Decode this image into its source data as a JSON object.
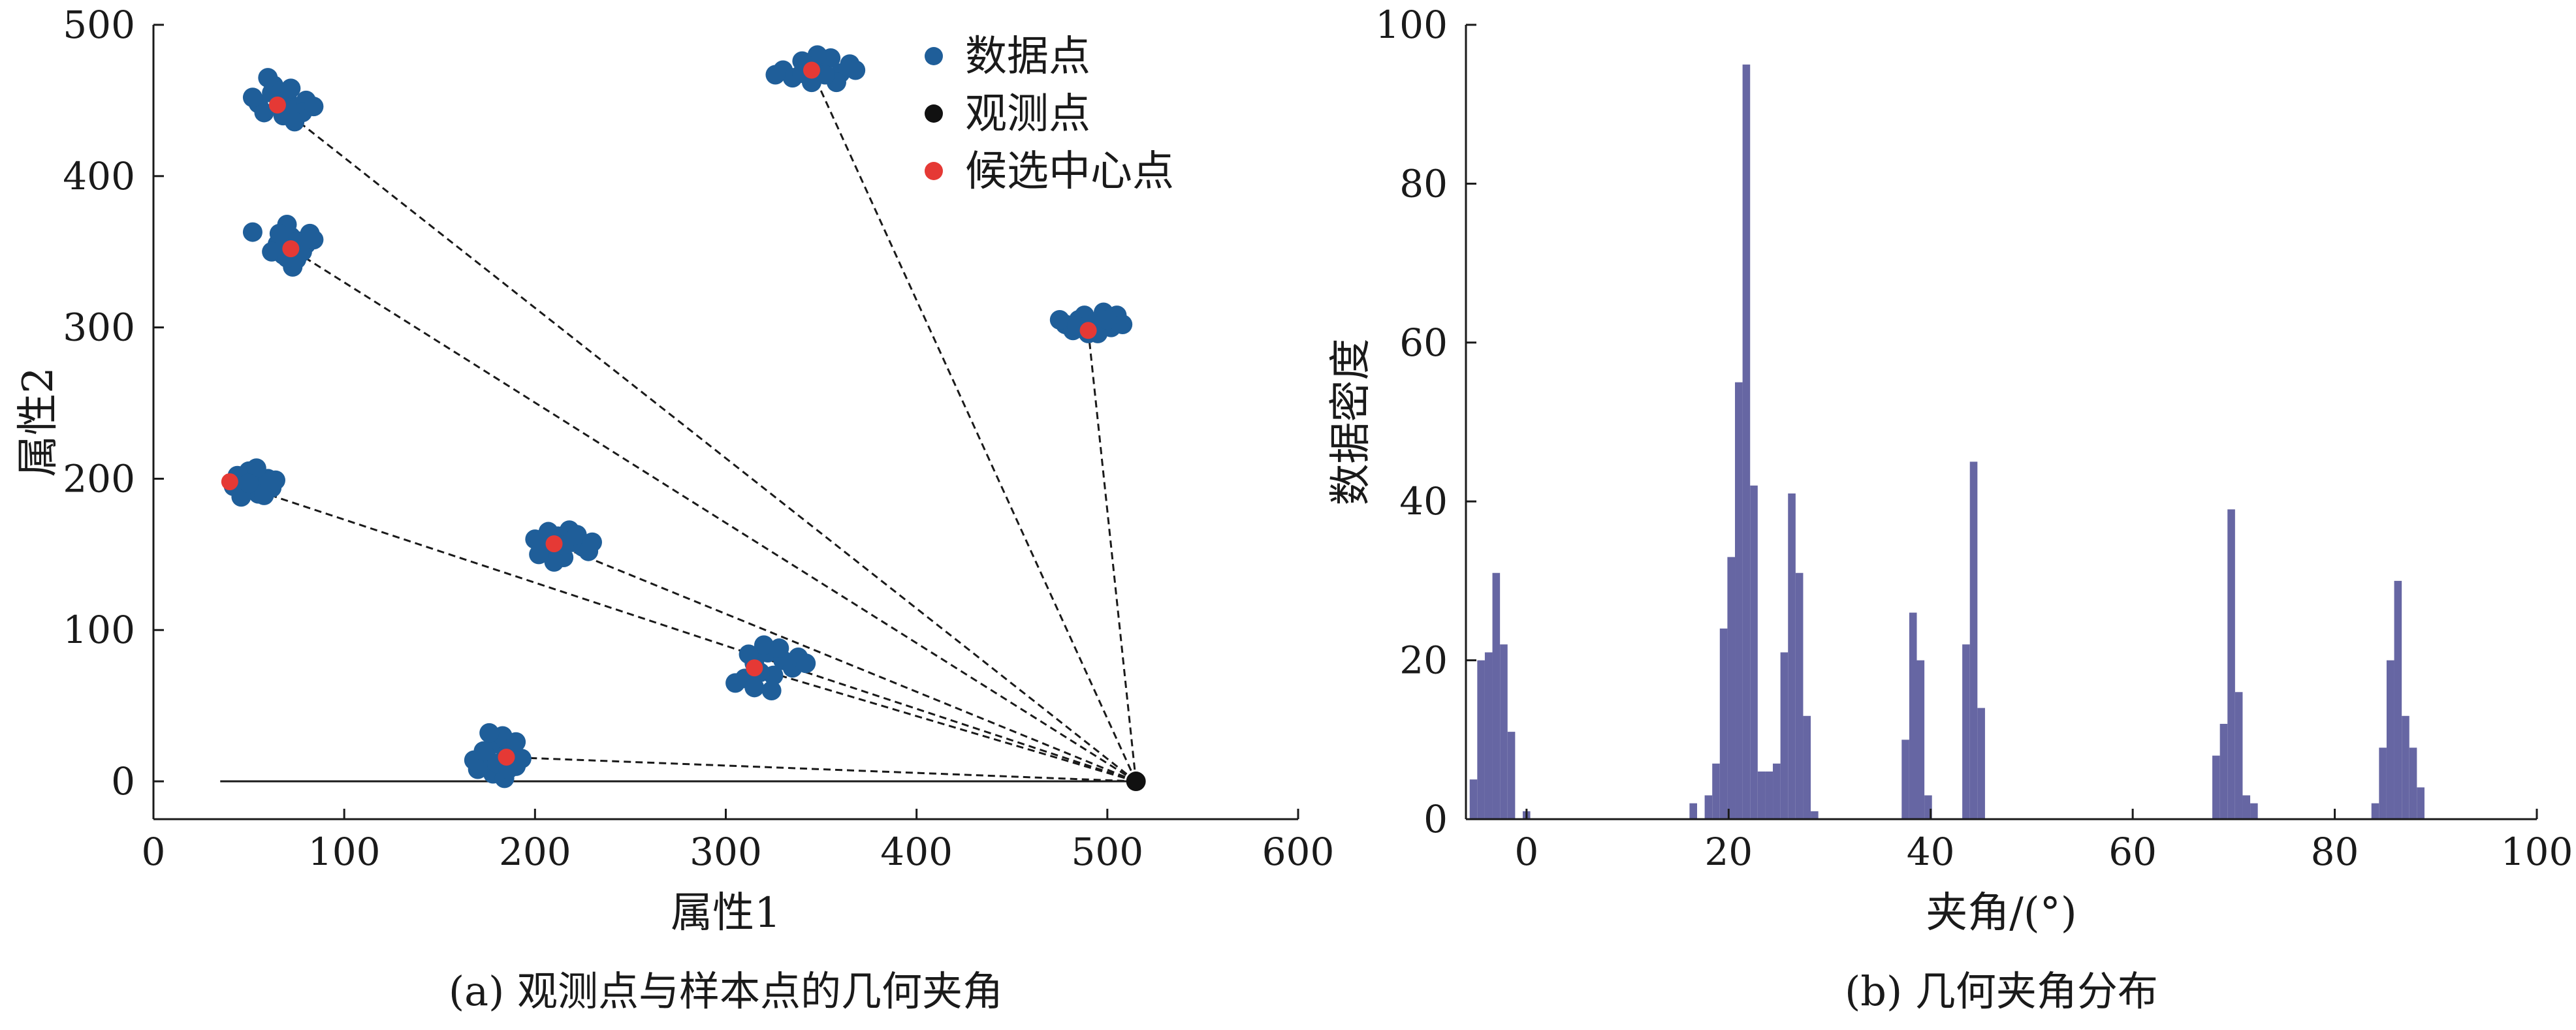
{
  "colors": {
    "data_point": "#1f5e99",
    "observation": "#111111",
    "candidate": "#e53935",
    "histogram": "#6666a3",
    "axis": "#1a1a1a"
  },
  "chart_data": [
    {
      "type": "scatter",
      "caption": "(a) 观测点与样本点的几何夹角",
      "xlabel": "属性1",
      "ylabel": "属性2",
      "xlim": [
        0,
        600
      ],
      "ylim": [
        -25,
        500
      ],
      "xticks": [
        0,
        100,
        200,
        300,
        400,
        500,
        600
      ],
      "yticks": [
        0,
        100,
        200,
        300,
        400,
        500
      ],
      "legend": {
        "position": "top-center",
        "entries": [
          {
            "label": "数据点",
            "marker": "data"
          },
          {
            "label": "观测点",
            "marker": "observation"
          },
          {
            "label": "候选中心点",
            "marker": "candidate"
          }
        ]
      },
      "observation_point": {
        "x": 515,
        "y": 0
      },
      "baseline": {
        "x0": 35,
        "x1": 515,
        "y": 0
      },
      "clusters": [
        {
          "center": {
            "x": 65,
            "y": 447
          },
          "data": [
            [
              55,
              448
            ],
            [
              62,
              455
            ],
            [
              70,
              452
            ],
            [
              75,
              445
            ],
            [
              68,
              440
            ],
            [
              58,
              442
            ],
            [
              80,
              450
            ],
            [
              63,
              460
            ],
            [
              72,
              458
            ],
            [
              52,
              452
            ],
            [
              78,
              442
            ],
            [
              66,
              448
            ],
            [
              74,
              436
            ],
            [
              60,
              465
            ],
            [
              84,
              446
            ]
          ]
        },
        {
          "center": {
            "x": 345,
            "y": 470
          },
          "data": [
            [
              330,
              470
            ],
            [
              340,
              476
            ],
            [
              350,
              472
            ],
            [
              360,
              468
            ],
            [
              345,
              462
            ],
            [
              335,
              465
            ],
            [
              355,
              478
            ],
            [
              365,
              474
            ],
            [
              326,
              467
            ],
            [
              348,
              480
            ],
            [
              358,
              462
            ],
            [
              340,
              468
            ],
            [
              352,
              467
            ],
            [
              368,
              470
            ],
            [
              343,
              473
            ]
          ]
        },
        {
          "center": {
            "x": 72,
            "y": 352
          },
          "data": [
            [
              65,
              355
            ],
            [
              72,
              360
            ],
            [
              80,
              355
            ],
            [
              75,
              345
            ],
            [
              68,
              348
            ],
            [
              82,
              362
            ],
            [
              70,
              368
            ],
            [
              62,
              350
            ],
            [
              78,
              350
            ],
            [
              73,
              340
            ],
            [
              84,
              358
            ],
            [
              66,
              362
            ],
            [
              52,
              363
            ],
            [
              76,
              357
            ],
            [
              70,
              346
            ]
          ]
        },
        {
          "center": {
            "x": 490,
            "y": 298
          },
          "data": [
            [
              478,
              302
            ],
            [
              485,
              305
            ],
            [
              495,
              303
            ],
            [
              502,
              300
            ],
            [
              490,
              296
            ],
            [
              505,
              308
            ],
            [
              482,
              298
            ],
            [
              498,
              310
            ],
            [
              475,
              305
            ],
            [
              508,
              302
            ],
            [
              488,
              308
            ],
            [
              495,
              296
            ],
            [
              500,
              305
            ],
            [
              484,
              301
            ],
            [
              492,
              302
            ]
          ]
        },
        {
          "center": {
            "x": 40,
            "y": 198
          },
          "data": [
            [
              45,
              198
            ],
            [
              52,
              202
            ],
            [
              58,
              196
            ],
            [
              48,
              192
            ],
            [
              55,
              190
            ],
            [
              60,
              200
            ],
            [
              42,
              195
            ],
            [
              50,
              205
            ],
            [
              62,
              194
            ],
            [
              46,
              188
            ],
            [
              54,
              207
            ],
            [
              58,
              189
            ],
            [
              44,
              202
            ],
            [
              50,
              197
            ],
            [
              64,
              199
            ]
          ]
        },
        {
          "center": {
            "x": 210,
            "y": 157
          },
          "data": [
            [
              205,
              155
            ],
            [
              212,
              162
            ],
            [
              220,
              158
            ],
            [
              215,
              148
            ],
            [
              208,
              150
            ],
            [
              225,
              155
            ],
            [
              200,
              160
            ],
            [
              218,
              166
            ],
            [
              228,
              152
            ],
            [
              210,
              145
            ],
            [
              202,
              150
            ],
            [
              222,
              163
            ],
            [
              215,
              156
            ],
            [
              207,
              165
            ],
            [
              230,
              158
            ]
          ]
        },
        {
          "center": {
            "x": 315,
            "y": 75
          },
          "data": [
            [
              315,
              78
            ],
            [
              322,
              85
            ],
            [
              330,
              80
            ],
            [
              325,
              70
            ],
            [
              318,
              72
            ],
            [
              310,
              68
            ],
            [
              335,
              75
            ],
            [
              328,
              88
            ],
            [
              320,
              90
            ],
            [
              305,
              65
            ],
            [
              338,
              82
            ],
            [
              315,
              62
            ],
            [
              324,
              60
            ],
            [
              342,
              78
            ],
            [
              312,
              84
            ]
          ]
        },
        {
          "center": {
            "x": 185,
            "y": 16
          },
          "data": [
            [
              175,
              15
            ],
            [
              180,
              25
            ],
            [
              185,
              18
            ],
            [
              190,
              10
            ],
            [
              178,
              5
            ],
            [
              172,
              12
            ],
            [
              183,
              30
            ],
            [
              188,
              22
            ],
            [
              170,
              8
            ],
            [
              193,
              15
            ],
            [
              176,
              32
            ],
            [
              184,
              2
            ],
            [
              168,
              14
            ],
            [
              190,
              26
            ],
            [
              180,
              12
            ],
            [
              173,
              20
            ],
            [
              186,
              8
            ]
          ]
        }
      ]
    },
    {
      "type": "bar",
      "caption": "(b) 几何夹角分布",
      "xlabel": "夹角/(°)",
      "ylabel": "数据密度",
      "xlim": [
        -6,
        100
      ],
      "ylim": [
        0,
        100
      ],
      "xticks": [
        0,
        20,
        40,
        60,
        80,
        100
      ],
      "yticks": [
        0,
        20,
        40,
        60,
        80,
        100
      ],
      "bin_width": 0.75,
      "bins": [
        {
          "x": -5.63,
          "y": 5
        },
        {
          "x": -4.88,
          "y": 20
        },
        {
          "x": -4.13,
          "y": 21
        },
        {
          "x": -3.38,
          "y": 31
        },
        {
          "x": -2.63,
          "y": 22
        },
        {
          "x": -1.88,
          "y": 11
        },
        {
          "x": -0.38,
          "y": 1
        },
        {
          "x": 16.13,
          "y": 2
        },
        {
          "x": 17.63,
          "y": 3
        },
        {
          "x": 18.38,
          "y": 7
        },
        {
          "x": 19.13,
          "y": 24
        },
        {
          "x": 19.88,
          "y": 33
        },
        {
          "x": 20.63,
          "y": 55
        },
        {
          "x": 21.38,
          "y": 95
        },
        {
          "x": 22.13,
          "y": 42
        },
        {
          "x": 22.88,
          "y": 6
        },
        {
          "x": 23.63,
          "y": 6
        },
        {
          "x": 24.38,
          "y": 7
        },
        {
          "x": 25.13,
          "y": 21
        },
        {
          "x": 25.88,
          "y": 41
        },
        {
          "x": 26.63,
          "y": 31
        },
        {
          "x": 27.38,
          "y": 13
        },
        {
          "x": 28.13,
          "y": 1
        },
        {
          "x": 37.13,
          "y": 10
        },
        {
          "x": 37.88,
          "y": 26
        },
        {
          "x": 38.63,
          "y": 20
        },
        {
          "x": 39.38,
          "y": 3
        },
        {
          "x": 43.13,
          "y": 22
        },
        {
          "x": 43.88,
          "y": 45
        },
        {
          "x": 44.63,
          "y": 14
        },
        {
          "x": 67.88,
          "y": 8
        },
        {
          "x": 68.63,
          "y": 12
        },
        {
          "x": 69.38,
          "y": 39
        },
        {
          "x": 70.13,
          "y": 16
        },
        {
          "x": 70.88,
          "y": 3
        },
        {
          "x": 71.63,
          "y": 2
        },
        {
          "x": 83.63,
          "y": 2
        },
        {
          "x": 84.38,
          "y": 9
        },
        {
          "x": 85.13,
          "y": 20
        },
        {
          "x": 85.88,
          "y": 30
        },
        {
          "x": 86.63,
          "y": 13
        },
        {
          "x": 87.38,
          "y": 9
        },
        {
          "x": 88.13,
          "y": 4
        }
      ]
    }
  ]
}
